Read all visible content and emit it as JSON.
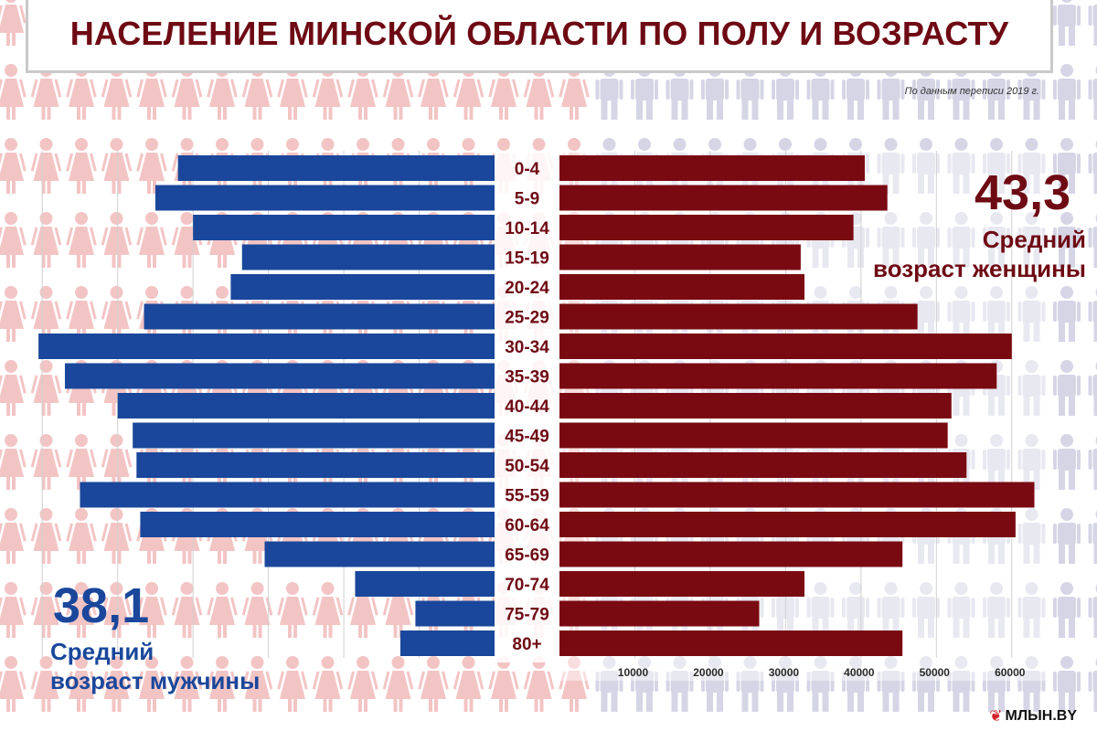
{
  "header": {
    "title": "НАСЕЛЕНИЕ МИНСКОЙ ОБЛАСТИ ПО ПОЛУ И ВОЗРАСТУ",
    "source_note": "По данным переписи 2019 г."
  },
  "stats": {
    "male_value": "38,1",
    "male_label_line1": "Средний",
    "male_label_line2": "возраст мужчины",
    "female_value": "43,3",
    "female_label_line1": "Средний",
    "female_label_line2": "возраст женщины"
  },
  "logo": {
    "mark": "❦",
    "text": "МЛЫН.BY"
  },
  "colors": {
    "male": "#1a479b",
    "female": "#7a0a12",
    "title": "#6e0a14",
    "bg_female_figure": "#f3c4c4",
    "bg_male_figure": "#d5d5e6"
  },
  "chart_data": {
    "type": "bar",
    "orientation": "horizontal-pyramid",
    "categories": [
      "0-4",
      "5-9",
      "10-14",
      "15-19",
      "20-24",
      "25-29",
      "30-34",
      "35-39",
      "40-44",
      "45-49",
      "50-54",
      "55-59",
      "60-64",
      "65-69",
      "70-74",
      "75-79",
      "80+"
    ],
    "series": [
      {
        "key": "male",
        "side": "left",
        "color": "#1a479b",
        "values": [
          42000,
          45000,
          40000,
          33500,
          35000,
          46500,
          60500,
          57000,
          50000,
          48000,
          47500,
          55000,
          47000,
          30500,
          18500,
          10500,
          12500
        ]
      },
      {
        "key": "female",
        "side": "right",
        "color": "#7a0a12",
        "values": [
          40500,
          43500,
          39000,
          32000,
          32500,
          47500,
          60000,
          58000,
          52000,
          51500,
          54000,
          63000,
          60500,
          45500,
          32500,
          26500,
          45500
        ]
      }
    ],
    "x_ticks": [
      10000,
      20000,
      30000,
      40000,
      50000,
      60000
    ],
    "x_tick_labels": [
      "10000",
      "20000",
      "30000",
      "40000",
      "50000",
      "60000"
    ],
    "xlim": [
      0,
      65000
    ],
    "grid": true
  }
}
